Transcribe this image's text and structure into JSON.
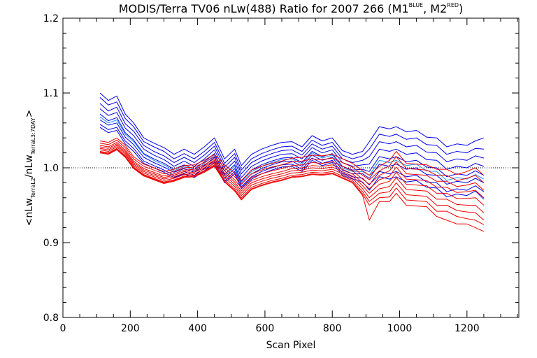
{
  "chart_data": {
    "type": "line",
    "title_main": "MODIS/Terra TV06 nLw(488) Ratio for 2007 266 (M1",
    "title_sup1": "BLUE",
    "title_mid": ", M2",
    "title_sup2": "RED",
    "title_end": ")",
    "xlabel": "Scan Pixel",
    "ylabel_parts": {
      "open": "<nLw",
      "sub1": "TerraL2",
      "slash": "/nLw",
      "sub2": "TerraL3:7DAY",
      "close": ">"
    },
    "xlim": [
      0,
      1354
    ],
    "ylim": [
      0.8,
      1.2
    ],
    "x_ticks": [
      "0",
      "200",
      "400",
      "600",
      "800",
      "1000",
      "1200"
    ],
    "y_ticks": [
      "0.8",
      "0.9",
      "1.0",
      "1.1",
      "1.2"
    ],
    "reference_line": 1.0,
    "colors": {
      "blue": "#0000ee",
      "light_blue": "#1e90ff",
      "red": "#ee0000",
      "axis": "#000000"
    },
    "x": [
      110,
      135,
      160,
      185,
      210,
      240,
      270,
      300,
      330,
      360,
      390,
      420,
      450,
      480,
      510,
      530,
      560,
      590,
      620,
      650,
      680,
      710,
      740,
      770,
      800,
      830,
      860,
      890,
      910,
      940,
      970,
      990,
      1020,
      1050,
      1080,
      1110,
      1140,
      1170,
      1200,
      1225,
      1250
    ],
    "series": [
      {
        "color": "blue",
        "values": [
          1.1,
          1.09,
          1.096,
          1.072,
          1.06,
          1.04,
          1.033,
          1.027,
          1.018,
          1.025,
          1.018,
          1.028,
          1.04,
          1.012,
          1.025,
          1.003,
          1.018,
          1.025,
          1.03,
          1.034,
          1.035,
          1.028,
          1.043,
          1.036,
          1.04,
          1.023,
          1.018,
          1.022,
          1.035,
          1.055,
          1.052,
          1.055,
          1.048,
          1.05,
          1.041,
          1.04,
          1.028,
          1.032,
          1.03,
          1.036,
          1.04
        ]
      },
      {
        "color": "blue",
        "values": [
          1.094,
          1.084,
          1.088,
          1.066,
          1.055,
          1.035,
          1.028,
          1.022,
          1.012,
          1.019,
          1.012,
          1.022,
          1.034,
          1.006,
          1.019,
          0.997,
          1.012,
          1.019,
          1.024,
          1.028,
          1.029,
          1.022,
          1.037,
          1.03,
          1.034,
          1.017,
          1.012,
          1.016,
          1.025,
          1.045,
          1.042,
          1.045,
          1.038,
          1.04,
          1.031,
          1.03,
          1.018,
          1.022,
          1.02,
          1.026,
          1.025
        ]
      },
      {
        "color": "blue",
        "values": [
          1.086,
          1.076,
          1.081,
          1.059,
          1.049,
          1.03,
          1.022,
          1.016,
          1.007,
          1.014,
          1.007,
          1.017,
          1.029,
          1.001,
          1.014,
          0.992,
          1.007,
          1.014,
          1.019,
          1.023,
          1.024,
          1.017,
          1.032,
          1.025,
          1.029,
          1.012,
          1.007,
          1.01,
          1.015,
          1.035,
          1.032,
          1.035,
          1.028,
          1.03,
          1.021,
          1.02,
          1.008,
          1.012,
          1.01,
          1.016,
          1.013
        ]
      },
      {
        "color": "blue",
        "values": [
          1.079,
          1.07,
          1.074,
          1.053,
          1.043,
          1.025,
          1.017,
          1.011,
          1.002,
          1.009,
          1.002,
          1.012,
          1.024,
          0.996,
          1.009,
          0.987,
          1.002,
          1.009,
          1.014,
          1.018,
          1.019,
          1.012,
          1.027,
          1.02,
          1.024,
          1.007,
          1.002,
          1.004,
          1.005,
          1.025,
          1.022,
          1.025,
          1.018,
          1.02,
          1.011,
          1.01,
          0.998,
          1.002,
          1.0,
          1.006,
          1.002
        ]
      },
      {
        "color": "blue",
        "values": [
          1.072,
          1.063,
          1.067,
          1.047,
          1.037,
          1.019,
          1.012,
          1.006,
          0.998,
          1.004,
          0.998,
          1.008,
          1.019,
          0.991,
          1.004,
          0.982,
          0.997,
          1.004,
          1.009,
          1.013,
          1.014,
          1.007,
          1.022,
          1.015,
          1.019,
          1.002,
          0.997,
          0.998,
          0.995,
          1.015,
          1.012,
          1.015,
          1.008,
          1.01,
          1.001,
          1.0,
          0.988,
          0.992,
          0.99,
          0.996,
          0.99
        ]
      },
      {
        "color": "blue",
        "values": [
          1.064,
          1.057,
          1.06,
          1.041,
          1.031,
          1.014,
          1.007,
          1.001,
          0.994,
          0.999,
          0.994,
          1.003,
          1.014,
          0.986,
          0.999,
          0.978,
          0.992,
          0.999,
          1.004,
          1.008,
          1.009,
          1.002,
          1.017,
          1.01,
          1.014,
          0.997,
          0.992,
          0.992,
          0.986,
          1.005,
          1.002,
          1.005,
          0.998,
          1.0,
          0.991,
          0.99,
          0.978,
          0.982,
          0.98,
          0.986,
          0.98
        ]
      },
      {
        "color": "blue",
        "values": [
          1.058,
          1.051,
          1.054,
          1.036,
          1.026,
          1.009,
          1.003,
          0.997,
          0.99,
          0.995,
          0.99,
          0.999,
          1.01,
          0.982,
          0.995,
          0.975,
          0.988,
          0.995,
          1.0,
          1.004,
          1.005,
          0.998,
          1.013,
          1.006,
          1.01,
          0.993,
          0.988,
          0.986,
          0.977,
          0.995,
          0.992,
          0.995,
          0.988,
          0.99,
          0.981,
          0.98,
          0.968,
          0.972,
          0.97,
          0.976,
          0.968
        ]
      },
      {
        "color": "blue",
        "values": [
          1.054,
          1.047,
          1.05,
          1.032,
          1.022,
          1.006,
          1.0,
          0.994,
          0.987,
          0.992,
          0.987,
          0.996,
          1.007,
          0.98,
          0.992,
          0.972,
          0.985,
          0.992,
          0.997,
          1.001,
          1.002,
          0.995,
          1.01,
          1.003,
          1.007,
          0.99,
          0.985,
          0.981,
          0.97,
          0.988,
          0.985,
          0.988,
          0.981,
          0.983,
          0.974,
          0.973,
          0.961,
          0.965,
          0.963,
          0.969,
          0.958
        ]
      },
      {
        "color": "light_blue",
        "values": [
          1.068,
          1.06,
          1.064,
          1.045,
          1.035,
          1.018,
          1.01,
          1.004,
          0.996,
          1.002,
          0.996,
          1.006,
          1.017,
          0.989,
          1.002,
          0.98,
          0.995,
          1.002,
          1.007,
          1.011,
          1.012,
          1.005,
          1.02,
          1.013,
          1.017,
          1.0,
          0.995,
          0.995,
          0.99,
          1.01,
          1.007,
          1.01,
          1.003,
          1.005,
          0.996,
          0.995,
          0.983,
          0.987,
          0.985,
          0.991,
          0.985
        ]
      },
      {
        "color": "red",
        "values": [
          1.036,
          1.034,
          1.04,
          1.03,
          1.015,
          1.005,
          1.0,
          0.995,
          0.998,
          1.003,
          1.004,
          1.01,
          1.018,
          1.004,
          0.993,
          0.983,
          0.997,
          1.002,
          1.006,
          1.009,
          1.013,
          1.014,
          1.017,
          1.016,
          1.018,
          1.012,
          1.006,
          0.996,
          0.99,
          1.002,
          1.01,
          1.022,
          1.006,
          1.005,
          1.004,
          0.998,
          0.998,
          0.991,
          0.995,
          1.0,
          0.99
        ]
      },
      {
        "color": "red",
        "values": [
          1.033,
          1.031,
          1.037,
          1.027,
          1.012,
          1.002,
          0.997,
          0.992,
          0.995,
          1.0,
          1.001,
          1.007,
          1.015,
          1.0,
          0.988,
          0.978,
          0.992,
          0.997,
          1.001,
          1.004,
          1.008,
          1.009,
          1.012,
          1.011,
          1.013,
          1.007,
          1.001,
          0.99,
          0.984,
          0.996,
          1.003,
          1.015,
          0.999,
          0.998,
          0.997,
          0.99,
          0.99,
          0.983,
          0.986,
          0.99,
          0.98
        ]
      },
      {
        "color": "red",
        "values": [
          1.03,
          1.028,
          1.034,
          1.024,
          1.009,
          0.999,
          0.994,
          0.989,
          0.992,
          0.997,
          0.998,
          1.004,
          1.012,
          0.996,
          0.984,
          0.973,
          0.987,
          0.992,
          0.996,
          0.999,
          1.003,
          1.004,
          1.007,
          1.006,
          1.008,
          1.002,
          0.996,
          0.985,
          0.978,
          0.99,
          0.996,
          1.008,
          0.992,
          0.991,
          0.99,
          0.982,
          0.982,
          0.975,
          0.977,
          0.98,
          0.97
        ]
      },
      {
        "color": "red",
        "values": [
          1.028,
          1.026,
          1.032,
          1.022,
          1.007,
          0.997,
          0.992,
          0.987,
          0.99,
          0.995,
          0.996,
          1.002,
          1.01,
          0.993,
          0.981,
          0.969,
          0.983,
          0.988,
          0.992,
          0.995,
          0.999,
          1.0,
          1.003,
          1.002,
          1.004,
          0.998,
          0.992,
          0.98,
          0.972,
          0.984,
          0.989,
          1.001,
          0.985,
          0.984,
          0.983,
          0.974,
          0.974,
          0.967,
          0.968,
          0.97,
          0.96
        ]
      },
      {
        "color": "red",
        "values": [
          1.026,
          1.024,
          1.03,
          1.02,
          1.005,
          0.995,
          0.99,
          0.985,
          0.988,
          0.993,
          0.994,
          1.0,
          1.008,
          0.99,
          0.978,
          0.966,
          0.98,
          0.985,
          0.989,
          0.992,
          0.996,
          0.997,
          1.0,
          0.999,
          1.001,
          0.995,
          0.989,
          0.976,
          0.966,
          0.978,
          0.982,
          0.994,
          0.978,
          0.977,
          0.976,
          0.966,
          0.966,
          0.959,
          0.959,
          0.96,
          0.95
        ]
      },
      {
        "color": "red",
        "values": [
          1.024,
          1.022,
          1.028,
          1.018,
          1.003,
          0.993,
          0.988,
          0.983,
          0.986,
          0.991,
          0.992,
          0.998,
          1.006,
          0.987,
          0.975,
          0.963,
          0.977,
          0.982,
          0.986,
          0.989,
          0.993,
          0.994,
          0.997,
          0.996,
          0.998,
          0.992,
          0.986,
          0.972,
          0.96,
          0.972,
          0.975,
          0.987,
          0.971,
          0.97,
          0.969,
          0.958,
          0.958,
          0.951,
          0.95,
          0.95,
          0.94
        ]
      },
      {
        "color": "red",
        "values": [
          1.022,
          1.02,
          1.026,
          1.016,
          1.001,
          0.991,
          0.986,
          0.981,
          0.984,
          0.989,
          0.99,
          0.996,
          1.004,
          0.984,
          0.972,
          0.96,
          0.974,
          0.979,
          0.983,
          0.986,
          0.99,
          0.991,
          0.994,
          0.993,
          0.995,
          0.989,
          0.983,
          0.968,
          0.955,
          0.966,
          0.968,
          0.98,
          0.964,
          0.963,
          0.962,
          0.95,
          0.95,
          0.943,
          0.941,
          0.94,
          0.93
        ]
      },
      {
        "color": "red",
        "values": [
          1.021,
          1.019,
          1.025,
          1.015,
          1.0,
          0.99,
          0.985,
          0.98,
          0.983,
          0.988,
          0.989,
          0.995,
          1.003,
          0.982,
          0.97,
          0.958,
          0.972,
          0.977,
          0.981,
          0.984,
          0.988,
          0.989,
          0.992,
          0.991,
          0.993,
          0.987,
          0.981,
          0.965,
          0.95,
          0.96,
          0.961,
          0.973,
          0.957,
          0.956,
          0.955,
          0.942,
          0.942,
          0.935,
          0.932,
          0.93,
          0.924
        ]
      },
      {
        "color": "red",
        "values": [
          1.02,
          1.018,
          1.024,
          1.014,
          0.999,
          0.989,
          0.984,
          0.979,
          0.982,
          0.987,
          0.988,
          0.994,
          1.002,
          0.981,
          0.969,
          0.957,
          0.971,
          0.976,
          0.98,
          0.983,
          0.987,
          0.988,
          0.991,
          0.99,
          0.992,
          0.986,
          0.98,
          0.963,
          0.93,
          0.955,
          0.955,
          0.966,
          0.95,
          0.949,
          0.948,
          0.935,
          0.93,
          0.925,
          0.925,
          0.92,
          0.915
        ]
      }
    ]
  }
}
